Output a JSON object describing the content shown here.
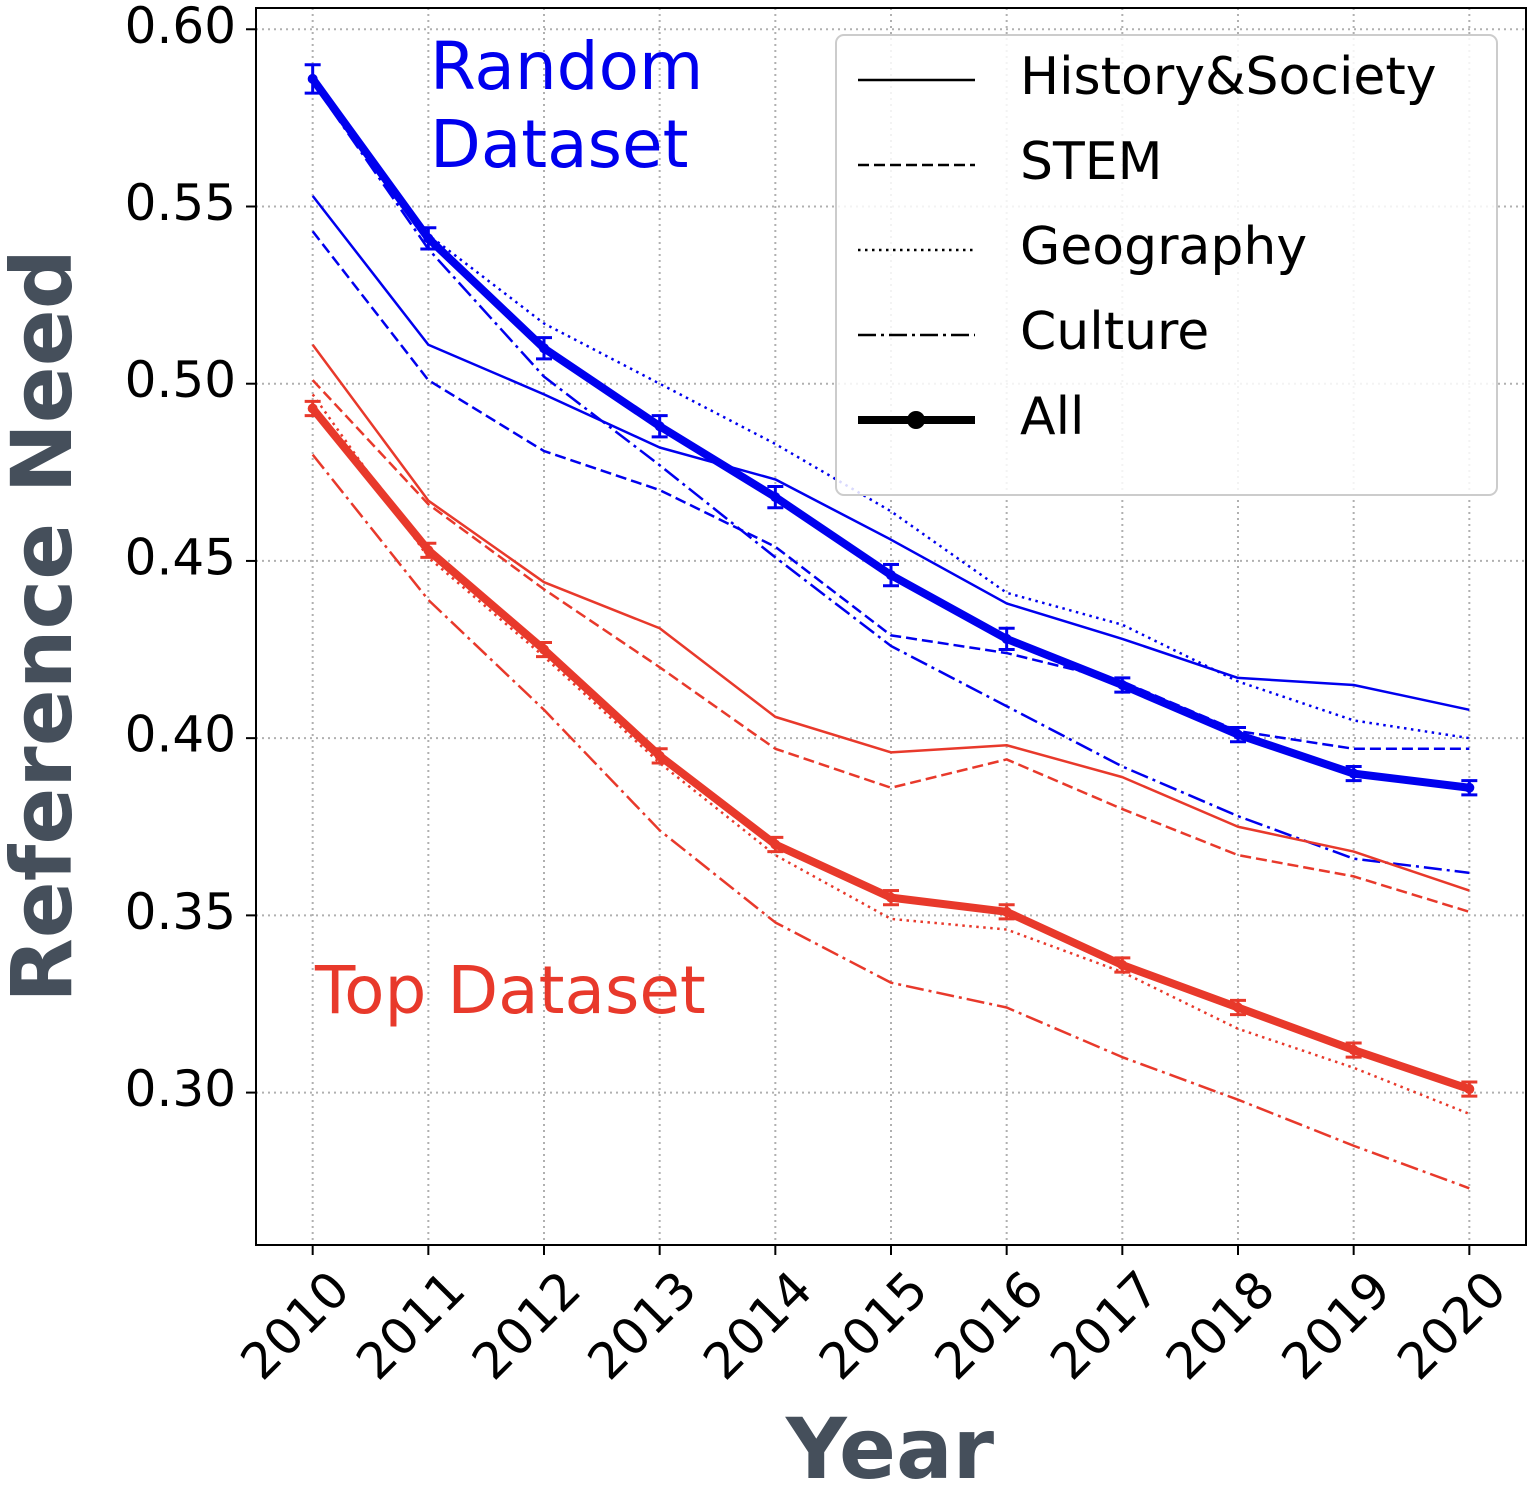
{
  "chart_data": {
    "type": "line",
    "x_label": "Year",
    "y_label": "Reference Need",
    "x": [
      2010,
      2011,
      2012,
      2013,
      2014,
      2015,
      2016,
      2017,
      2018,
      2019,
      2020
    ],
    "xlim": [
      2009.51,
      2020.49
    ],
    "xticks": [
      2010,
      2011,
      2012,
      2013,
      2014,
      2015,
      2016,
      2017,
      2018,
      2019,
      2020
    ],
    "ylim": [
      0.257,
      0.606
    ],
    "yticks": [
      {
        "value": 0.3,
        "label": "0.30"
      },
      {
        "value": 0.35,
        "label": "0.35"
      },
      {
        "value": 0.4,
        "label": "0.40"
      },
      {
        "value": 0.45,
        "label": "0.45"
      },
      {
        "value": 0.5,
        "label": "0.50"
      },
      {
        "value": 0.55,
        "label": "0.55"
      },
      {
        "value": 0.6,
        "label": "0.60"
      }
    ],
    "grid": true,
    "legend": "upper right",
    "annotations": [
      {
        "text": "Random Dataset",
        "color": "#0000ee"
      },
      {
        "text": "Top Dataset",
        "color": "#e8392b"
      }
    ],
    "series": [
      {
        "name": "History&Society",
        "color": "#0000ee",
        "style": "solid",
        "values": [
          0.553,
          0.511,
          0.497,
          0.482,
          0.473,
          0.456,
          0.438,
          0.428,
          0.417,
          0.415,
          0.408
        ]
      },
      {
        "name": "STEM",
        "color": "#0000ee",
        "style": "dashed",
        "values": [
          0.543,
          0.501,
          0.481,
          0.47,
          0.454,
          0.429,
          0.424,
          0.416,
          0.402,
          0.397,
          0.397
        ]
      },
      {
        "name": "Geography",
        "color": "#0000ee",
        "style": "dotted",
        "values": [
          0.585,
          0.542,
          0.517,
          0.5,
          0.483,
          0.464,
          0.441,
          0.432,
          0.416,
          0.405,
          0.4
        ]
      },
      {
        "name": "Culture",
        "color": "#0000ee",
        "style": "dashdot",
        "values": [
          0.585,
          0.538,
          0.502,
          0.477,
          0.451,
          0.426,
          0.409,
          0.392,
          0.378,
          0.366,
          0.362
        ]
      },
      {
        "name": "All",
        "color": "#0000ee",
        "style": "bold",
        "values": [
          0.586,
          0.541,
          0.51,
          0.488,
          0.468,
          0.446,
          0.428,
          0.415,
          0.401,
          0.39,
          0.386
        ],
        "errors": [
          0.004,
          0.003,
          0.003,
          0.003,
          0.003,
          0.003,
          0.003,
          0.002,
          0.002,
          0.002,
          0.002
        ]
      },
      {
        "name": "History&Society",
        "color": "#e8392b",
        "style": "solid",
        "values": [
          0.511,
          0.467,
          0.444,
          0.431,
          0.406,
          0.396,
          0.398,
          0.389,
          0.375,
          0.368,
          0.357
        ]
      },
      {
        "name": "STEM",
        "color": "#e8392b",
        "style": "dashed",
        "values": [
          0.501,
          0.466,
          0.442,
          0.42,
          0.397,
          0.386,
          0.394,
          0.38,
          0.367,
          0.361,
          0.351
        ]
      },
      {
        "name": "Geography",
        "color": "#e8392b",
        "style": "dotted",
        "values": [
          0.497,
          0.451,
          0.423,
          0.393,
          0.367,
          0.349,
          0.346,
          0.334,
          0.318,
          0.307,
          0.294
        ]
      },
      {
        "name": "Culture",
        "color": "#e8392b",
        "style": "dashdot",
        "values": [
          0.48,
          0.439,
          0.408,
          0.374,
          0.348,
          0.331,
          0.324,
          0.31,
          0.298,
          0.285,
          0.273
        ]
      },
      {
        "name": "All",
        "color": "#e8392b",
        "style": "bold",
        "values": [
          0.493,
          0.453,
          0.425,
          0.395,
          0.37,
          0.355,
          0.351,
          0.336,
          0.324,
          0.312,
          0.301
        ],
        "errors": [
          0.002,
          0.002,
          0.002,
          0.002,
          0.002,
          0.002,
          0.002,
          0.002,
          0.002,
          0.002,
          0.002
        ]
      }
    ]
  }
}
